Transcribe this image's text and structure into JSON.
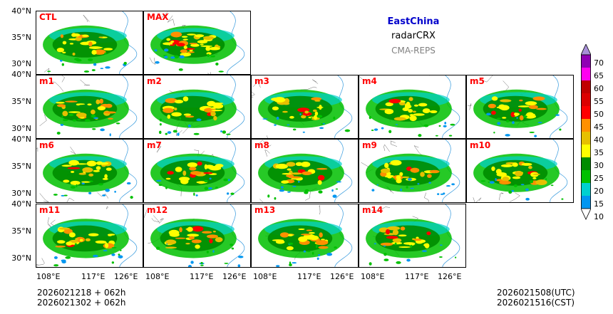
{
  "header": {
    "region": "EastChina",
    "variable": "radarCRX",
    "system": "CMA-REPS"
  },
  "panels": [
    "CTL",
    "MAX",
    "m1",
    "m2",
    "m3",
    "m4",
    "m5",
    "m6",
    "m7",
    "m8",
    "m9",
    "m10",
    "m11",
    "m12",
    "m13",
    "m14"
  ],
  "axes": {
    "yticks": [
      "40°N",
      "35°N",
      "30°N"
    ],
    "xticks": [
      "108°E",
      "117°E",
      "126°E"
    ]
  },
  "colorbar": {
    "levels": [
      "10",
      "15",
      "20",
      "25",
      "30",
      "35",
      "40",
      "45",
      "50",
      "55",
      "60",
      "65",
      "70"
    ],
    "colors": [
      "#0096f0",
      "#00d0d0",
      "#00c000",
      "#008c00",
      "#ffff00",
      "#e6c000",
      "#ff9000",
      "#ff0000",
      "#dc0000",
      "#c00000",
      "#ff00f0",
      "#9000b4",
      "#a78fd8"
    ]
  },
  "footer": {
    "init_line1": "2026021218  +  062h",
    "init_line2": "2026021302  +  062h",
    "valid_utc": "2026021508(UTC)",
    "valid_cst": "2026021516(CST)"
  }
}
